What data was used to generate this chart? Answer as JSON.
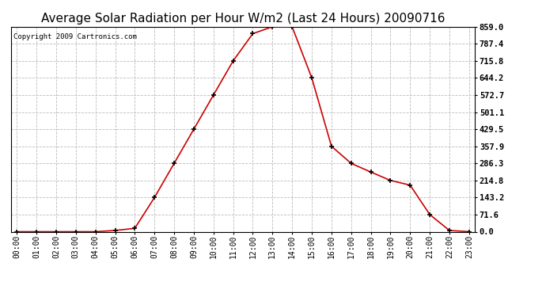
{
  "title": "Average Solar Radiation per Hour W/m2 (Last 24 Hours) 20090716",
  "copyright": "Copyright 2009 Cartronics.com",
  "x_labels": [
    "00:00",
    "01:00",
    "02:00",
    "03:00",
    "04:00",
    "05:00",
    "06:00",
    "07:00",
    "08:00",
    "09:00",
    "10:00",
    "11:00",
    "12:00",
    "13:00",
    "14:00",
    "15:00",
    "16:00",
    "17:00",
    "18:00",
    "19:00",
    "20:00",
    "21:00",
    "22:00",
    "23:00"
  ],
  "y_values": [
    0.0,
    0.0,
    0.0,
    0.0,
    0.0,
    5.0,
    14.0,
    143.2,
    286.3,
    429.5,
    572.7,
    715.8,
    830.0,
    859.0,
    859.0,
    644.2,
    357.9,
    286.3,
    250.0,
    214.8,
    195.0,
    71.6,
    5.0,
    0.0
  ],
  "line_color": "#cc0000",
  "marker_color": "#000000",
  "bg_color": "#ffffff",
  "grid_color": "#bbbbbb",
  "yticks": [
    0.0,
    71.6,
    143.2,
    214.8,
    286.3,
    357.9,
    429.5,
    501.1,
    572.7,
    644.2,
    715.8,
    787.4,
    859.0
  ],
  "ylim": [
    0.0,
    859.0
  ],
  "title_fontsize": 11,
  "copyright_fontsize": 6.5,
  "tick_fontsize": 7,
  "fig_width": 6.9,
  "fig_height": 3.75,
  "dpi": 100
}
